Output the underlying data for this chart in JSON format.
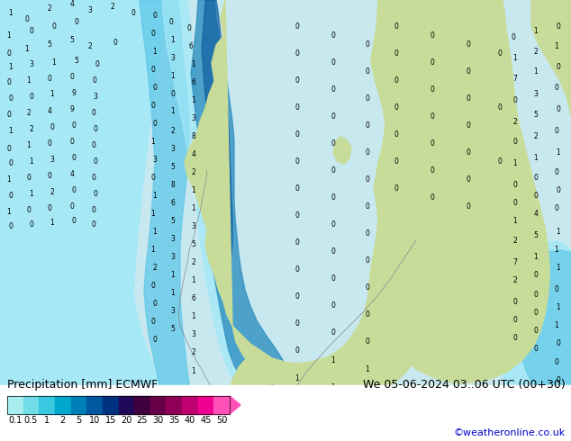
{
  "title_left": "Precipitation [mm] ECMWF",
  "title_right": "We 05-06-2024 03..06 UTC (00+30)",
  "credit": "©weatheronline.co.uk",
  "colorbar_labels": [
    "0.1",
    "0.5",
    "1",
    "2",
    "5",
    "10",
    "15",
    "20",
    "25",
    "30",
    "35",
    "40",
    "45",
    "50"
  ],
  "colorbar_colors": [
    "#a8eef0",
    "#70dce8",
    "#38c8e0",
    "#00a8d0",
    "#0080b8",
    "#0058a0",
    "#003080",
    "#200858",
    "#400040",
    "#680048",
    "#900058",
    "#c00070",
    "#f00090",
    "#ff50b8"
  ],
  "ocean_color": "#c8e8f0",
  "land_color": "#c8dc9a",
  "sea_lake_color": "#d8eef8",
  "precip_light_color": "#a0e8f8",
  "precip_mid_color": "#60c8e8",
  "precip_blue_color": "#3090c0",
  "precip_dark_color": "#1060a0",
  "text_color": "#000000",
  "credit_color": "#0000cc",
  "title_fontsize": 9,
  "credit_fontsize": 8,
  "label_fontsize": 7,
  "fig_width": 6.34,
  "fig_height": 4.9,
  "dpi": 100
}
